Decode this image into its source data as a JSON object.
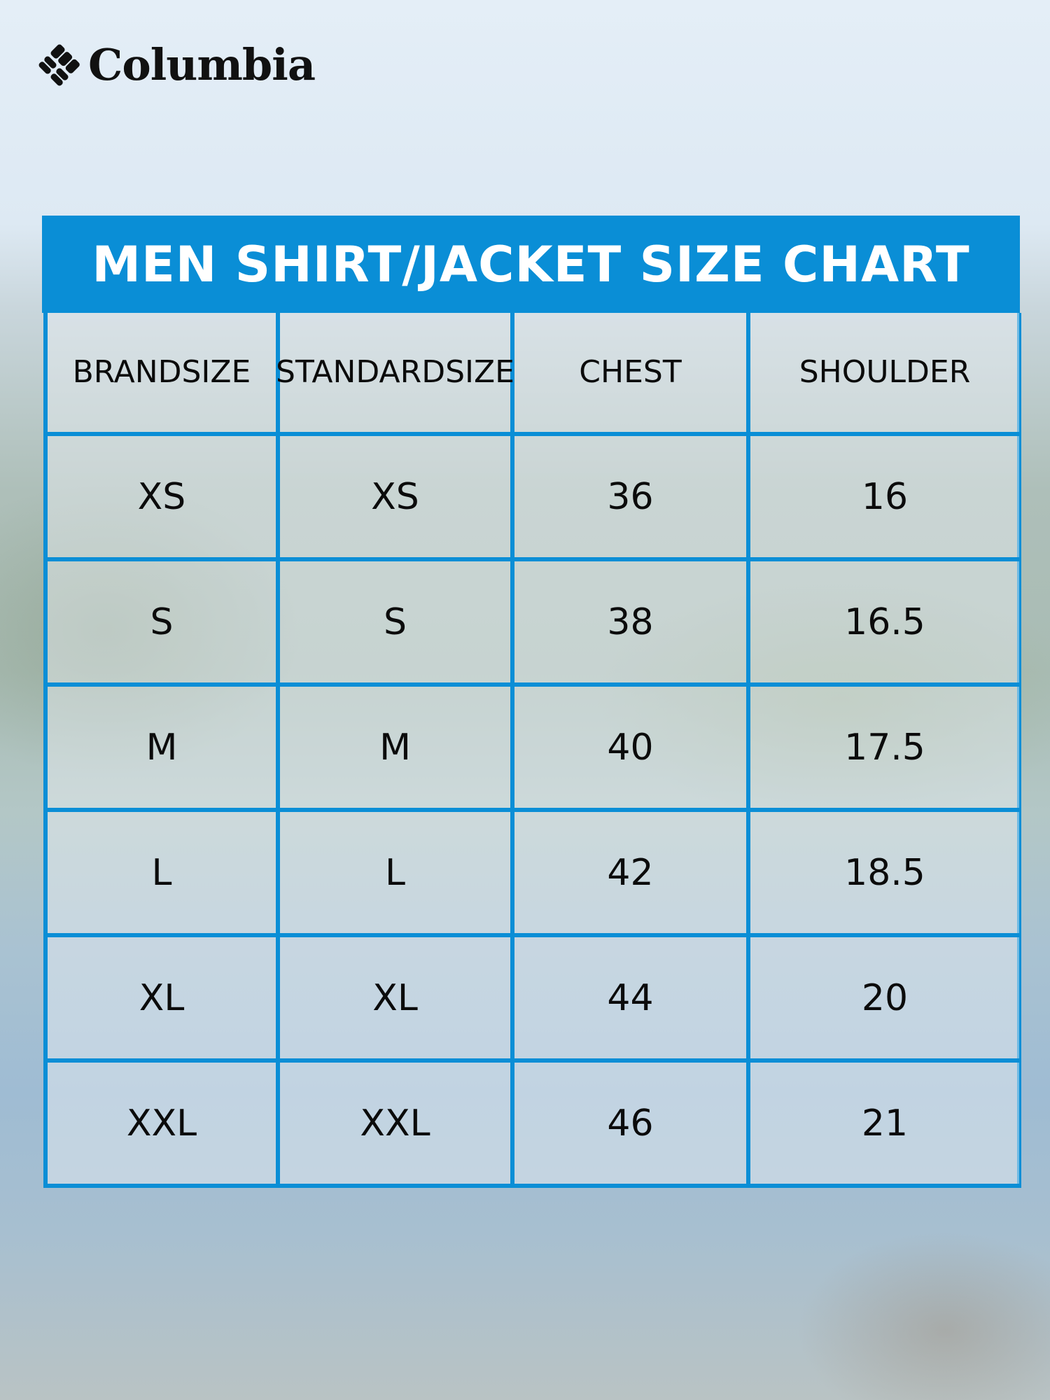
{
  "brand": {
    "logo_text": "Columbia"
  },
  "title": "MEN SHIRT/JACKET SIZE CHART",
  "colors": {
    "accent": "#0a8ed6",
    "text": "#0b0b0b"
  },
  "columns": [
    {
      "line1": "BRAND",
      "line2": "SIZE"
    },
    {
      "line1": "STANDARD",
      "line2": "SIZE"
    },
    {
      "line1": "CHEST",
      "line2": ""
    },
    {
      "line1": "SHOULDER",
      "line2": ""
    }
  ],
  "rows": [
    [
      "XS",
      "XS",
      "36",
      "16"
    ],
    [
      "S",
      "S",
      "38",
      "16.5"
    ],
    [
      "M",
      "M",
      "40",
      "17.5"
    ],
    [
      "L",
      "L",
      "42",
      "18.5"
    ],
    [
      "XL",
      "XL",
      "44",
      "20"
    ],
    [
      "XXL",
      "XXL",
      "46",
      "21"
    ]
  ]
}
